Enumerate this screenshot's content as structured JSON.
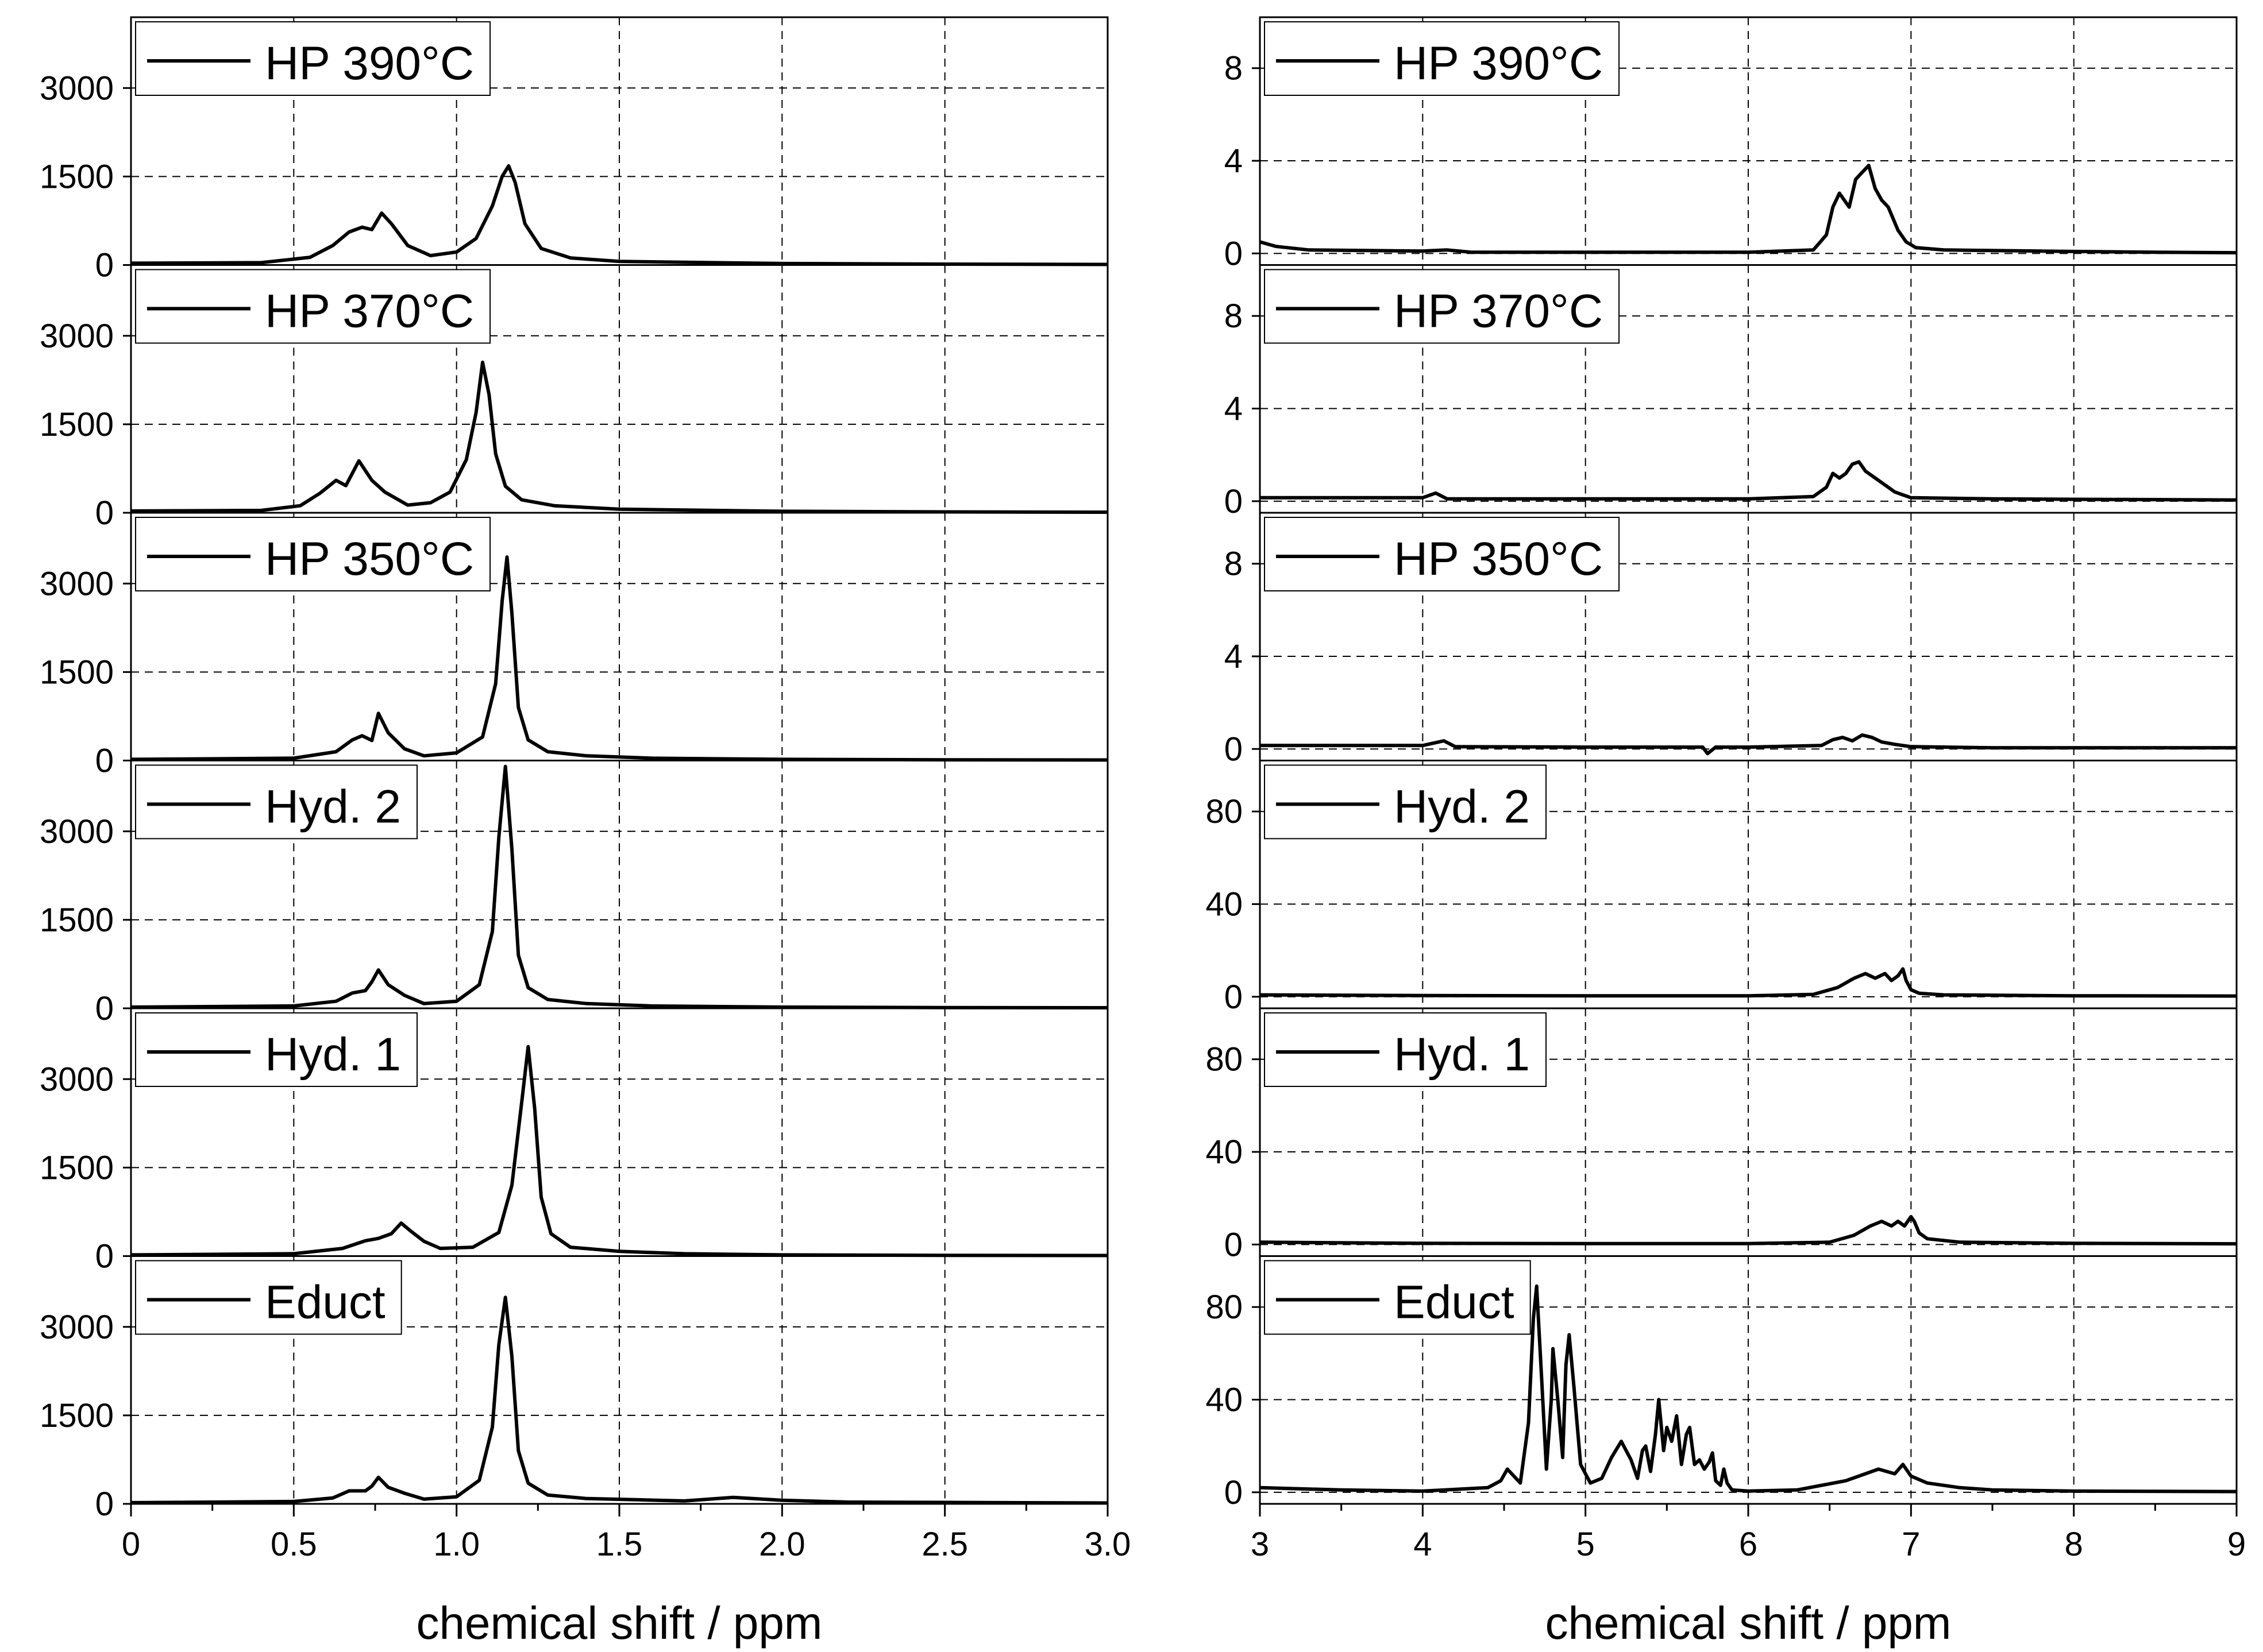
{
  "chart_data": [
    {
      "type": "line",
      "column": "left",
      "xlabel": "chemical shift / ppm",
      "xlim": [
        0,
        3.0
      ],
      "xticks": [
        "0",
        "0.5",
        "1.0",
        "1.5",
        "2.0",
        "2.5",
        "3.0"
      ],
      "xtick_values": [
        0,
        0.5,
        1.0,
        1.5,
        2.0,
        2.5,
        3.0
      ],
      "grid": true,
      "legend_position": "top-left",
      "panels": [
        {
          "name": "HP 390°C",
          "ylim": [
            0,
            4200
          ],
          "yticks": [
            "0",
            "1500",
            "3000"
          ],
          "ytick_values": [
            0,
            1500,
            3000
          ],
          "series": [
            {
              "name": "HP 390°C",
              "x": [
                0.0,
                0.4,
                0.55,
                0.62,
                0.67,
                0.71,
                0.74,
                0.77,
                0.8,
                0.85,
                0.92,
                1.0,
                1.06,
                1.11,
                1.14,
                1.16,
                1.18,
                1.21,
                1.26,
                1.35,
                1.5,
                2.0,
                2.5,
                3.0
              ],
              "y": [
                30,
                40,
                130,
                330,
                560,
                640,
                600,
                880,
                700,
                330,
                160,
                220,
                450,
                1000,
                1500,
                1680,
                1400,
                700,
                280,
                120,
                60,
                25,
                15,
                10
              ]
            }
          ]
        },
        {
          "name": "HP 370°C",
          "ylim": [
            0,
            4200
          ],
          "yticks": [
            "0",
            "1500",
            "3000"
          ],
          "ytick_values": [
            0,
            1500,
            3000
          ],
          "series": [
            {
              "name": "HP 370°C",
              "x": [
                0.0,
                0.4,
                0.52,
                0.58,
                0.63,
                0.66,
                0.7,
                0.74,
                0.78,
                0.85,
                0.92,
                0.98,
                1.03,
                1.06,
                1.08,
                1.1,
                1.12,
                1.15,
                1.2,
                1.3,
                1.5,
                2.0,
                2.5,
                3.0
              ],
              "y": [
                30,
                40,
                120,
                330,
                550,
                460,
                880,
                550,
                350,
                130,
                170,
                350,
                900,
                1700,
                2550,
                2000,
                1000,
                450,
                220,
                120,
                60,
                25,
                15,
                10
              ]
            }
          ]
        },
        {
          "name": "HP 350°C",
          "ylim": [
            0,
            4200
          ],
          "yticks": [
            "0",
            "1500",
            "3000"
          ],
          "ytick_values": [
            0,
            1500,
            3000
          ],
          "series": [
            {
              "name": "HP 350°C",
              "x": [
                0.0,
                0.5,
                0.63,
                0.68,
                0.71,
                0.74,
                0.76,
                0.79,
                0.84,
                0.9,
                1.0,
                1.08,
                1.12,
                1.14,
                1.155,
                1.17,
                1.19,
                1.22,
                1.28,
                1.4,
                1.6,
                2.0,
                2.5,
                3.0
              ],
              "y": [
                20,
                40,
                150,
                350,
                420,
                340,
                800,
                470,
                200,
                80,
                130,
                400,
                1300,
                2700,
                3450,
                2500,
                900,
                350,
                150,
                80,
                40,
                20,
                12,
                10
              ]
            }
          ]
        },
        {
          "name": "Hyd. 2",
          "ylim": [
            0,
            4200
          ],
          "yticks": [
            "0",
            "1500",
            "3000"
          ],
          "ytick_values": [
            0,
            1500,
            3000
          ],
          "series": [
            {
              "name": "Hyd. 2",
              "x": [
                0.0,
                0.5,
                0.63,
                0.68,
                0.72,
                0.74,
                0.76,
                0.79,
                0.84,
                0.9,
                1.0,
                1.07,
                1.11,
                1.13,
                1.15,
                1.17,
                1.19,
                1.22,
                1.28,
                1.4,
                1.6,
                2.0,
                2.5,
                3.0
              ],
              "y": [
                20,
                40,
                120,
                260,
                300,
                450,
                650,
                400,
                220,
                80,
                120,
                400,
                1300,
                2900,
                4100,
                2700,
                900,
                350,
                150,
                80,
                40,
                20,
                12,
                10
              ]
            }
          ]
        },
        {
          "name": "Hyd. 1",
          "ylim": [
            0,
            4200
          ],
          "yticks": [
            "0",
            "1500",
            "3000"
          ],
          "ytick_values": [
            0,
            1500,
            3000
          ],
          "series": [
            {
              "name": "Hyd. 1",
              "x": [
                0.0,
                0.5,
                0.65,
                0.72,
                0.76,
                0.8,
                0.83,
                0.86,
                0.9,
                0.95,
                1.05,
                1.13,
                1.17,
                1.2,
                1.22,
                1.24,
                1.26,
                1.29,
                1.35,
                1.5,
                1.7,
                2.0,
                2.5,
                3.0
              ],
              "y": [
                20,
                40,
                130,
                260,
                300,
                380,
                560,
                420,
                250,
                130,
                150,
                400,
                1200,
                2600,
                3550,
                2500,
                1000,
                380,
                150,
                80,
                40,
                20,
                12,
                10
              ]
            }
          ]
        },
        {
          "name": "Educt",
          "ylim": [
            0,
            4200
          ],
          "yticks": [
            "0",
            "1500",
            "3000"
          ],
          "ytick_values": [
            0,
            1500,
            3000
          ],
          "series": [
            {
              "name": "Educt",
              "x": [
                0.0,
                0.5,
                0.62,
                0.67,
                0.72,
                0.74,
                0.76,
                0.79,
                0.84,
                0.9,
                1.0,
                1.07,
                1.11,
                1.13,
                1.15,
                1.17,
                1.19,
                1.22,
                1.28,
                1.4,
                1.55,
                1.7,
                1.85,
                2.0,
                2.2,
                3.0
              ],
              "y": [
                20,
                40,
                100,
                220,
                220,
                300,
                450,
                280,
                180,
                80,
                120,
                400,
                1300,
                2700,
                3500,
                2500,
                900,
                350,
                150,
                90,
                70,
                50,
                110,
                60,
                30,
                15
              ]
            }
          ]
        }
      ]
    },
    {
      "type": "line",
      "column": "right",
      "xlabel": "chemical shift / ppm",
      "xlim": [
        3,
        9
      ],
      "xticks": [
        "3",
        "4",
        "5",
        "6",
        "7",
        "8",
        "9"
      ],
      "xtick_values": [
        3,
        4,
        5,
        6,
        7,
        8,
        9
      ],
      "grid": true,
      "legend_position": "top-left",
      "panels": [
        {
          "name": "HP 390°C",
          "ylim": [
            -0.5,
            10.2
          ],
          "yticks": [
            "0",
            "4",
            "8"
          ],
          "ytick_values": [
            0,
            4,
            8
          ],
          "series": [
            {
              "name": "HP 390°C",
              "x": [
                3.0,
                3.1,
                3.3,
                4.0,
                4.15,
                4.3,
                5.0,
                6.0,
                6.4,
                6.48,
                6.52,
                6.56,
                6.62,
                6.66,
                6.7,
                6.74,
                6.78,
                6.82,
                6.86,
                6.92,
                6.97,
                7.03,
                7.2,
                7.8,
                8.5,
                9.0
              ],
              "y": [
                0.5,
                0.3,
                0.15,
                0.1,
                0.15,
                0.05,
                0.05,
                0.05,
                0.15,
                0.8,
                2.0,
                2.6,
                2.0,
                3.2,
                3.5,
                3.8,
                2.8,
                2.3,
                2.0,
                1.0,
                0.5,
                0.25,
                0.15,
                0.1,
                0.05,
                0.03
              ]
            }
          ]
        },
        {
          "name": "HP 370°C",
          "ylim": [
            -0.5,
            10.2
          ],
          "yticks": [
            "0",
            "4",
            "8"
          ],
          "ytick_values": [
            0,
            4,
            8
          ],
          "series": [
            {
              "name": "HP 370°C",
              "x": [
                3.0,
                4.0,
                4.08,
                4.15,
                5.0,
                6.0,
                6.4,
                6.48,
                6.52,
                6.56,
                6.6,
                6.64,
                6.68,
                6.72,
                6.78,
                6.84,
                6.9,
                7.0,
                7.5,
                9.0
              ],
              "y": [
                0.15,
                0.15,
                0.35,
                0.1,
                0.1,
                0.1,
                0.2,
                0.6,
                1.2,
                1.0,
                1.2,
                1.6,
                1.7,
                1.3,
                1.0,
                0.7,
                0.4,
                0.15,
                0.1,
                0.05
              ]
            }
          ]
        },
        {
          "name": "HP 350°C",
          "ylim": [
            -0.5,
            10.2
          ],
          "yticks": [
            "0",
            "4",
            "8"
          ],
          "ytick_values": [
            0,
            4,
            8
          ],
          "series": [
            {
              "name": "HP 350°C",
              "x": [
                3.0,
                4.0,
                4.13,
                4.2,
                5.0,
                5.72,
                5.75,
                5.8,
                6.0,
                6.45,
                6.52,
                6.58,
                6.64,
                6.7,
                6.76,
                6.82,
                6.9,
                7.0,
                7.5,
                9.0
              ],
              "y": [
                0.15,
                0.15,
                0.35,
                0.1,
                0.08,
                0.08,
                -0.2,
                0.08,
                0.08,
                0.15,
                0.4,
                0.5,
                0.35,
                0.6,
                0.5,
                0.3,
                0.2,
                0.1,
                0.05,
                0.05
              ]
            }
          ]
        },
        {
          "name": "Hyd. 2",
          "ylim": [
            -5,
            102
          ],
          "yticks": [
            "0",
            "40",
            "80"
          ],
          "ytick_values": [
            0,
            40,
            80
          ],
          "series": [
            {
              "name": "Hyd. 2",
              "x": [
                3.0,
                4.0,
                5.0,
                6.0,
                6.4,
                6.55,
                6.65,
                6.72,
                6.78,
                6.84,
                6.88,
                6.92,
                6.95,
                6.97,
                7.0,
                7.05,
                7.2,
                8.0,
                9.0
              ],
              "y": [
                0.8,
                0.5,
                0.4,
                0.4,
                1.0,
                4,
                8,
                10,
                8,
                10,
                7,
                9,
                12,
                7,
                3,
                1.5,
                0.8,
                0.4,
                0.3
              ]
            }
          ]
        },
        {
          "name": "Hyd. 1",
          "ylim": [
            -5,
            102
          ],
          "yticks": [
            "0",
            "40",
            "80"
          ],
          "ytick_values": [
            0,
            40,
            80
          ],
          "series": [
            {
              "name": "Hyd. 1",
              "x": [
                3.0,
                4.0,
                5.0,
                6.0,
                6.5,
                6.65,
                6.75,
                6.82,
                6.88,
                6.92,
                6.96,
                7.0,
                7.02,
                7.05,
                7.1,
                7.3,
                8.0,
                9.0
              ],
              "y": [
                1.0,
                0.5,
                0.4,
                0.4,
                1.0,
                4,
                8,
                10,
                8,
                10,
                8,
                12,
                10,
                5,
                2.5,
                1.0,
                0.5,
                0.3
              ]
            }
          ]
        },
        {
          "name": "Educt",
          "ylim": [
            -5,
            102
          ],
          "yticks": [
            "0",
            "40",
            "80"
          ],
          "ytick_values": [
            0,
            40,
            80
          ],
          "series": [
            {
              "name": "Educt",
              "x": [
                3.0,
                3.5,
                4.0,
                4.4,
                4.48,
                4.52,
                4.56,
                4.6,
                4.65,
                4.68,
                4.7,
                4.73,
                4.76,
                4.79,
                4.8,
                4.83,
                4.86,
                4.88,
                4.9,
                4.93,
                4.97,
                5.03,
                5.1,
                5.16,
                5.22,
                5.28,
                5.32,
                5.35,
                5.37,
                5.4,
                5.43,
                5.45,
                5.48,
                5.5,
                5.53,
                5.56,
                5.59,
                5.62,
                5.64,
                5.67,
                5.7,
                5.73,
                5.76,
                5.78,
                5.8,
                5.83,
                5.85,
                5.87,
                5.9,
                6.0,
                6.3,
                6.6,
                6.8,
                6.9,
                6.95,
                7.0,
                7.1,
                7.3,
                7.5,
                8.0,
                9.0
              ],
              "y": [
                2,
                1,
                0.5,
                2,
                5,
                10,
                7,
                4,
                30,
                75,
                89,
                50,
                10,
                40,
                62,
                40,
                15,
                55,
                68,
                45,
                12,
                4,
                6,
                15,
                22,
                14,
                6,
                18,
                20,
                9,
                25,
                40,
                18,
                28,
                22,
                33,
                12,
                25,
                28,
                12,
                14,
                10,
                13,
                17,
                5,
                3,
                10,
                4,
                1,
                0.5,
                1,
                5,
                10,
                8,
                12,
                7,
                4,
                2,
                1,
                0.5,
                0.3
              ]
            }
          ]
        }
      ]
    }
  ]
}
